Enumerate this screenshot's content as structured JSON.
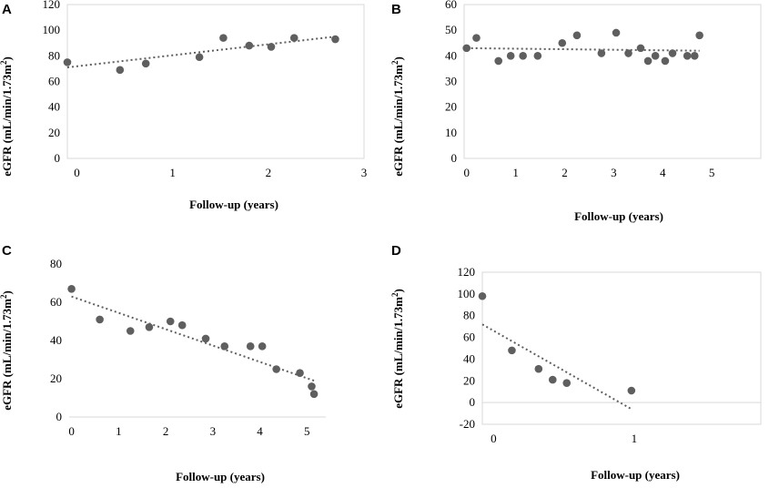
{
  "ylabel_main": "eGFR (mL/min/1.73m",
  "ylabel_sup": "2",
  "ylabel_close": ")",
  "chart_data": [
    {
      "id": "A",
      "type": "scatter",
      "title": "A",
      "xlabel": "Follow-up (years)",
      "ylabel": "eGFR (mL/min/1.73m2)",
      "xlim": [
        -0.1,
        3.0
      ],
      "ylim": [
        0,
        120
      ],
      "xticks": [
        0,
        1,
        2,
        3
      ],
      "yticks": [
        0,
        20,
        40,
        60,
        80,
        100,
        120
      ],
      "x": [
        -0.1,
        0.45,
        0.72,
        1.28,
        1.53,
        1.8,
        2.03,
        2.27,
        2.7
      ],
      "y": [
        75,
        69,
        74,
        79,
        94,
        88,
        87,
        94,
        93
      ],
      "trendline": {
        "x": [
          -0.1,
          2.7
        ],
        "y": [
          71,
          95
        ]
      }
    },
    {
      "id": "B",
      "type": "scatter",
      "title": "B",
      "xlabel": "Follow-up (years)",
      "ylabel": "eGFR (mL/min/1.73m2)",
      "xlim": [
        -0.05,
        6.0
      ],
      "ylim": [
        0,
        60
      ],
      "xticks": [
        0,
        1,
        2,
        3,
        4,
        5
      ],
      "yticks": [
        0,
        10,
        20,
        30,
        40,
        50,
        60
      ],
      "x": [
        0,
        0.2,
        0.65,
        0.9,
        1.15,
        1.45,
        1.95,
        2.25,
        2.75,
        3.05,
        3.3,
        3.55,
        3.7,
        3.85,
        4.05,
        4.2,
        4.5,
        4.65,
        4.75
      ],
      "y": [
        43,
        47,
        38,
        40,
        40,
        40,
        45,
        48,
        41,
        49,
        41,
        43,
        38,
        40,
        38,
        41,
        40,
        40,
        48
      ],
      "trendline": {
        "x": [
          0,
          4.75
        ],
        "y": [
          43,
          42
        ]
      }
    },
    {
      "id": "C",
      "type": "scatter",
      "title": "C",
      "xlabel": "Follow-up (years)",
      "ylabel": "eGFR (mL/min/1.73m2)",
      "xlim": [
        -0.05,
        5.4
      ],
      "ylim": [
        0,
        80
      ],
      "xticks": [
        0,
        1,
        2,
        3,
        4,
        5
      ],
      "yticks": [
        0,
        20,
        40,
        60,
        80
      ],
      "x": [
        0,
        0.6,
        1.25,
        1.65,
        2.1,
        2.35,
        2.85,
        3.25,
        3.8,
        4.05,
        4.35,
        4.85,
        5.1,
        5.15
      ],
      "y": [
        67,
        51,
        45,
        47,
        50,
        48,
        41,
        37,
        37,
        37,
        25,
        23,
        16,
        12
      ],
      "trendline": {
        "x": [
          0,
          5.15
        ],
        "y": [
          63,
          19
        ]
      }
    },
    {
      "id": "D",
      "type": "scatter",
      "title": "D",
      "xlabel": "Follow-up (years)",
      "ylabel": "eGFR (mL/min/1.73m2)",
      "xlim": [
        -0.08,
        1.9
      ],
      "ylim": [
        -20,
        120
      ],
      "xticks": [
        0,
        1
      ],
      "yticks": [
        -20,
        0,
        20,
        40,
        60,
        80,
        100,
        120
      ],
      "x": [
        -0.08,
        0.13,
        0.32,
        0.42,
        0.52,
        0.98
      ],
      "y": [
        98,
        48,
        31,
        21,
        18,
        11
      ],
      "trendline": {
        "x": [
          -0.08,
          0.98
        ],
        "y": [
          72,
          -6
        ]
      }
    }
  ]
}
